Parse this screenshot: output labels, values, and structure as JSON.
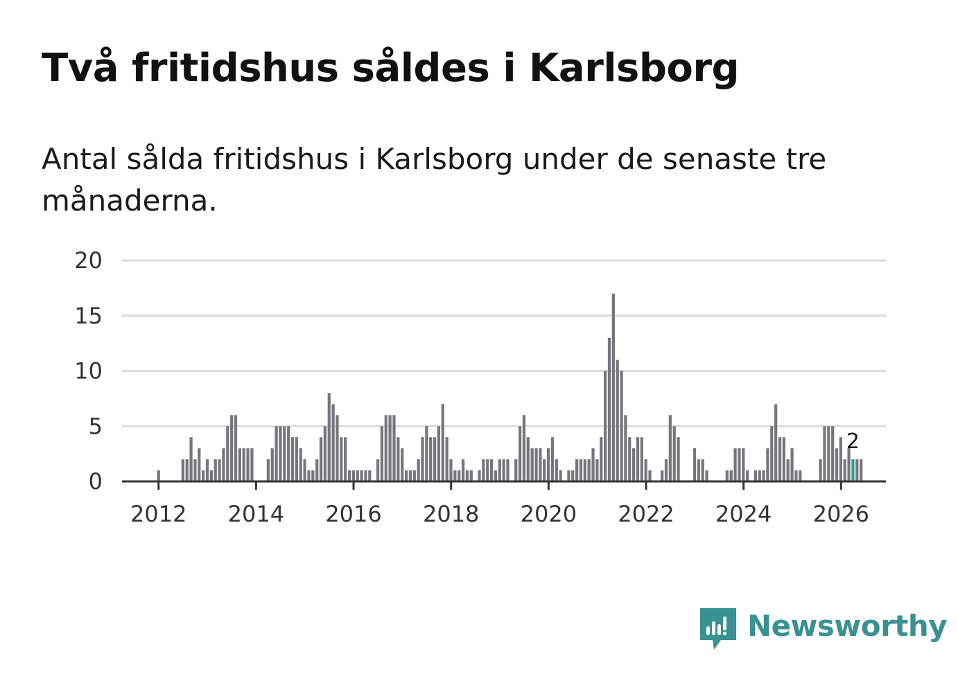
{
  "title": "Två fritidshus såldes i Karlsborg",
  "subtitle": "Antal sålda fritidshus i Karlsborg under de senaste tre månaderna.",
  "brand": {
    "name": "Newsworthy",
    "icon": "newsworthy-bar-chart-icon"
  },
  "colors": {
    "bar": "#77767b",
    "highlight": "#2a9d96",
    "grid": "#dcdcdc",
    "axis": "#333333",
    "brand": "#3a9191"
  },
  "chart_data": {
    "type": "bar",
    "title": "Två fritidshus såldes i Karlsborg",
    "xlabel": "",
    "ylabel": "",
    "ylim": [
      0,
      20
    ],
    "yticks": [
      0,
      5,
      10,
      15,
      20
    ],
    "xlim": [
      2011.25,
      2026.92
    ],
    "xticks": [
      2012,
      2014,
      2016,
      2018,
      2020,
      2022,
      2024,
      2026
    ],
    "start": 2011.25,
    "step": 0.0833,
    "values": [
      0,
      0,
      0,
      0,
      0,
      0,
      0,
      0,
      0,
      1,
      0,
      0,
      0,
      0,
      0,
      2,
      2,
      4,
      2,
      3,
      1,
      2,
      1,
      2,
      2,
      3,
      5,
      6,
      6,
      3,
      3,
      3,
      3,
      0,
      0,
      0,
      2,
      3,
      5,
      5,
      5,
      5,
      4,
      4,
      3,
      2,
      1,
      1,
      2,
      4,
      5,
      8,
      7,
      6,
      4,
      4,
      1,
      1,
      1,
      1,
      1,
      1,
      0,
      2,
      5,
      6,
      6,
      6,
      4,
      3,
      1,
      1,
      1,
      2,
      4,
      5,
      4,
      4,
      5,
      7,
      4,
      2,
      1,
      1,
      2,
      1,
      1,
      0,
      1,
      2,
      2,
      2,
      1,
      2,
      2,
      2,
      0,
      2,
      5,
      6,
      4,
      3,
      3,
      3,
      2,
      3,
      4,
      2,
      1,
      0,
      1,
      1,
      2,
      2,
      2,
      2,
      3,
      2,
      4,
      10,
      13,
      17,
      11,
      10,
      6,
      4,
      3,
      4,
      4,
      2,
      1,
      0,
      0,
      1,
      2,
      6,
      5,
      4,
      0,
      0,
      0,
      3,
      2,
      2,
      1,
      0,
      0,
      0,
      0,
      1,
      1,
      3,
      3,
      3,
      1,
      0,
      1,
      1,
      1,
      3,
      5,
      7,
      4,
      4,
      2,
      3,
      1,
      1,
      0,
      0,
      0,
      0,
      2,
      5,
      5,
      5,
      3,
      4,
      2,
      3,
      2,
      2,
      2
    ],
    "highlight_index": 180,
    "annotation": {
      "label": "2"
    }
  }
}
